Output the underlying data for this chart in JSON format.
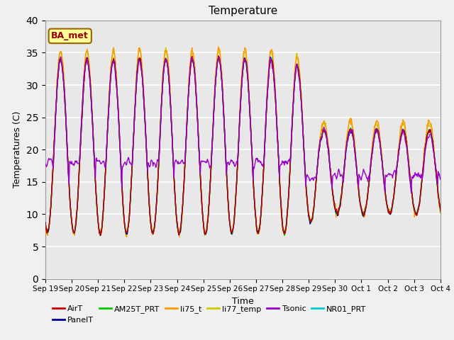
{
  "title": "Temperature",
  "ylabel": "Temperatures (C)",
  "xlabel": "Time",
  "annotation": "BA_met",
  "ylim": [
    0,
    40
  ],
  "y_ticks": [
    0,
    5,
    10,
    15,
    20,
    25,
    30,
    35,
    40
  ],
  "x_labels": [
    "Sep 19",
    "Sep 20",
    "Sep 21",
    "Sep 22",
    "Sep 23",
    "Sep 24",
    "Sep 25",
    "Sep 26",
    "Sep 27",
    "Sep 28",
    "Sep 29",
    "Sep 30",
    "Oct 1",
    "Oct 2",
    "Oct 3",
    "Oct 4"
  ],
  "series_colors": {
    "AirT": "#cc0000",
    "PanelT": "#000099",
    "AM25T_PRT": "#00cc00",
    "li75_t": "#ff9900",
    "li77_temp": "#cccc00",
    "Tsonic": "#9900cc",
    "NR01_PRT": "#00cccc"
  },
  "bg_color": "#e8e8e8",
  "grid_color": "#ffffff",
  "fig_color": "#f0f0f0",
  "annotation_bg": "#ffff99",
  "annotation_border": "#996600",
  "annotation_text_color": "#990000"
}
